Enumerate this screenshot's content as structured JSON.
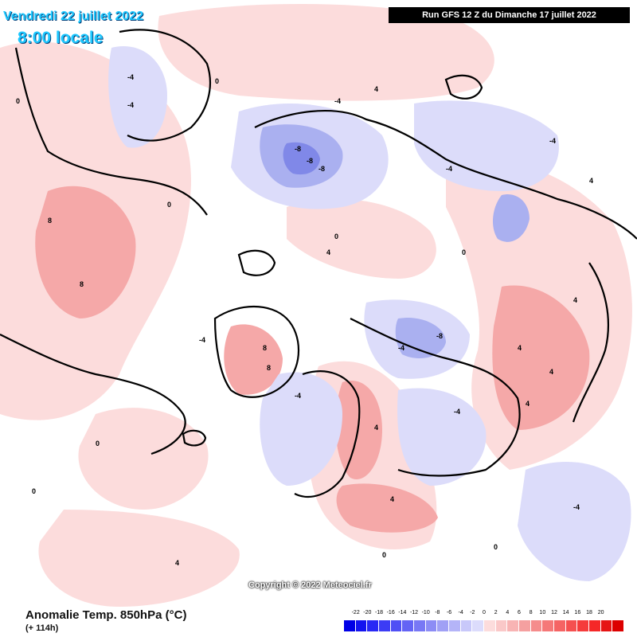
{
  "map": {
    "title_date": "Vendredi 22 juillet 2022",
    "title_time": "8:00 locale",
    "run_info": "Run GFS 12 Z du Dimanche 17 juillet 2022",
    "copyright": "Copyright © 2022 Meteociel.fr",
    "variable_title": "Anomalie Temp. 850hPa (°C)",
    "lead_time": "(+ 114h)",
    "colors": {
      "background": "#ffffff",
      "warm_light": "#fcdcdc",
      "warm_mid": "#f5a8a8",
      "cold_light": "#dcdcfa",
      "cold_mid": "#aab0f0",
      "cold_core": "#8088e8",
      "coastline": "#000000",
      "title": "#1ec8ff",
      "run_box": "#000000"
    },
    "legend": {
      "labels": [
        "-22",
        "-20",
        "-18",
        "-16",
        "-14",
        "-12",
        "-10",
        "-8",
        "-6",
        "-4",
        "-2",
        "0",
        "2",
        "4",
        "6",
        "8",
        "10",
        "12",
        "14",
        "16",
        "18",
        "20"
      ],
      "colors": [
        "#0000e6",
        "#1414f0",
        "#2828f5",
        "#3c3cf5",
        "#5050f5",
        "#6464f5",
        "#7878f5",
        "#8c8cf5",
        "#a0a0f5",
        "#b4b4f8",
        "#c8c8fa",
        "#dcdcfc",
        "#fcdcdc",
        "#fac8c8",
        "#f8b4b4",
        "#f5a0a0",
        "#f58c8c",
        "#f57878",
        "#f56464",
        "#f55050",
        "#f53c3c",
        "#f52828",
        "#e61414",
        "#dc0000"
      ]
    },
    "contour_labels": [
      "0",
      "0",
      "0",
      "0",
      "-4",
      "-4",
      "-4",
      "-4",
      "-4",
      "-8",
      "-8",
      "-8",
      "-8",
      "4",
      "4",
      "4",
      "4",
      "4",
      "4",
      "4",
      "8",
      "8",
      "8",
      "8",
      "0",
      "0",
      "0",
      "-4",
      "-4",
      "4",
      "4",
      "-4",
      "-4",
      "0",
      "0",
      "4",
      "-4"
    ]
  }
}
